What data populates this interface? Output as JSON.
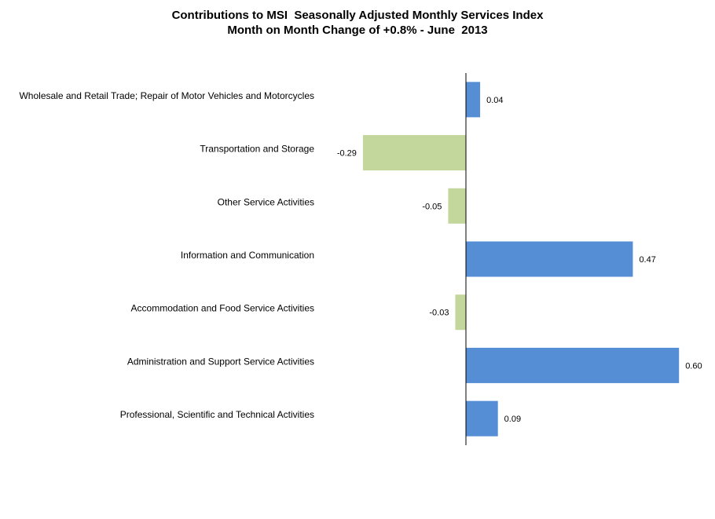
{
  "chart_data": {
    "type": "bar",
    "orientation": "horizontal",
    "title": "Contributions to MSI  Seasonally Adjusted Monthly Services Index",
    "subtitle": "Month on Month Change of +0.8% - June  2013",
    "categories": [
      "Wholesale and Retail Trade; Repair of Motor Vehicles and Motorcycles",
      "Transportation and Storage",
      "Other Service Activities",
      "Information and Communication",
      "Accommodation and Food Service Activities",
      "Administration and Support Service Activities",
      "Professional, Scientific and Technical Activities"
    ],
    "values": [
      0.04,
      -0.29,
      -0.05,
      0.47,
      -0.03,
      0.6,
      0.09
    ],
    "value_labels": [
      "0.04",
      "-0.29",
      "-0.05",
      "0.47",
      "-0.03",
      "0.60",
      "0.09"
    ],
    "xlim": [
      -0.3,
      0.6
    ],
    "grid": false,
    "legend": "none",
    "colors": {
      "positive": "#558ed5",
      "negative": "#c3d69b"
    }
  }
}
